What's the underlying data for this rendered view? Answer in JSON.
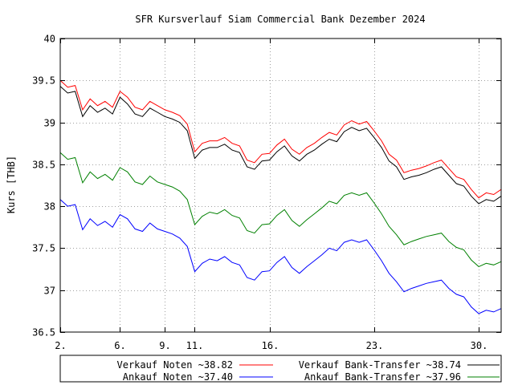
{
  "chart_data": {
    "type": "line",
    "title": "SFR Kursverlauf Siam Commercial Bank Dezember 2024",
    "xlabel": "",
    "ylabel": "Kurs [THB]",
    "xlim": [
      2,
      31.5
    ],
    "ylim": [
      36.5,
      40
    ],
    "x_ticks": [
      {
        "value": 2,
        "label": "2."
      },
      {
        "value": 6,
        "label": "6."
      },
      {
        "value": 9,
        "label": "9."
      },
      {
        "value": 11,
        "label": "11."
      },
      {
        "value": 16,
        "label": "16."
      },
      {
        "value": 23,
        "label": "23."
      },
      {
        "value": 30,
        "label": "30."
      }
    ],
    "y_ticks": [
      {
        "value": 36.5,
        "label": "36.5"
      },
      {
        "value": 37,
        "label": "37"
      },
      {
        "value": 37.5,
        "label": "37.5"
      },
      {
        "value": 38,
        "label": "38"
      },
      {
        "value": 38.5,
        "label": "38.5"
      },
      {
        "value": 39,
        "label": "39"
      },
      {
        "value": 39.5,
        "label": "39.5"
      },
      {
        "value": 40,
        "label": "40"
      }
    ],
    "grid": true,
    "legend_placement": "bottom",
    "series": [
      {
        "name": "Verkauf Noten ~38.82",
        "color": "#ff0000",
        "x": [
          2,
          2.5,
          3,
          3.5,
          4,
          4.5,
          5,
          5.5,
          6,
          6.5,
          7,
          7.5,
          8,
          8.5,
          9,
          9.5,
          10,
          10.5,
          11,
          11.5,
          12,
          12.5,
          13,
          13.5,
          14,
          14.5,
          15,
          15.5,
          16,
          16.5,
          17,
          17.5,
          18,
          18.5,
          19,
          19.5,
          20,
          20.5,
          21,
          21.5,
          22,
          22.5,
          23,
          23.5,
          24,
          24.5,
          25,
          25.5,
          26,
          26.5,
          27,
          27.5,
          28,
          28.5,
          29,
          29.5,
          30,
          30.5,
          31,
          31.5
        ],
        "values": [
          39.5,
          39.42,
          39.44,
          39.15,
          39.28,
          39.2,
          39.25,
          39.18,
          39.37,
          39.3,
          39.18,
          39.15,
          39.25,
          39.2,
          39.15,
          39.12,
          39.08,
          38.98,
          38.65,
          38.75,
          38.78,
          38.78,
          38.82,
          38.75,
          38.72,
          38.55,
          38.52,
          38.62,
          38.63,
          38.73,
          38.8,
          38.68,
          38.62,
          38.7,
          38.75,
          38.82,
          38.88,
          38.85,
          38.97,
          39.02,
          38.98,
          39.01,
          38.9,
          38.78,
          38.62,
          38.55,
          38.4,
          38.43,
          38.45,
          38.48,
          38.52,
          38.55,
          38.45,
          38.35,
          38.32,
          38.2,
          38.1,
          38.16,
          38.14,
          38.2
        ]
      },
      {
        "name": "Verkauf Bank-Transfer ~38.74",
        "color": "#000000",
        "x": [
          2,
          2.5,
          3,
          3.5,
          4,
          4.5,
          5,
          5.5,
          6,
          6.5,
          7,
          7.5,
          8,
          8.5,
          9,
          9.5,
          10,
          10.5,
          11,
          11.5,
          12,
          12.5,
          13,
          13.5,
          14,
          14.5,
          15,
          15.5,
          16,
          16.5,
          17,
          17.5,
          18,
          18.5,
          19,
          19.5,
          20,
          20.5,
          21,
          21.5,
          22,
          22.5,
          23,
          23.5,
          24,
          24.5,
          25,
          25.5,
          26,
          26.5,
          27,
          27.5,
          28,
          28.5,
          29,
          29.5,
          30,
          30.5,
          31,
          31.5
        ],
        "values": [
          39.43,
          39.35,
          39.37,
          39.07,
          39.2,
          39.12,
          39.17,
          39.1,
          39.3,
          39.22,
          39.1,
          39.07,
          39.17,
          39.12,
          39.07,
          39.04,
          39.0,
          38.9,
          38.57,
          38.67,
          38.7,
          38.7,
          38.74,
          38.67,
          38.64,
          38.47,
          38.44,
          38.54,
          38.55,
          38.65,
          38.72,
          38.6,
          38.54,
          38.62,
          38.67,
          38.74,
          38.8,
          38.77,
          38.89,
          38.94,
          38.9,
          38.93,
          38.82,
          38.7,
          38.54,
          38.47,
          38.32,
          38.35,
          38.37,
          38.4,
          38.44,
          38.47,
          38.37,
          38.27,
          38.24,
          38.12,
          38.03,
          38.08,
          38.06,
          38.12
        ]
      },
      {
        "name": "Ankauf Noten ~37.40",
        "color": "#0000ff",
        "x": [
          2,
          2.5,
          3,
          3.5,
          4,
          4.5,
          5,
          5.5,
          6,
          6.5,
          7,
          7.5,
          8,
          8.5,
          9,
          9.5,
          10,
          10.5,
          11,
          11.5,
          12,
          12.5,
          13,
          13.5,
          14,
          14.5,
          15,
          15.5,
          16,
          16.5,
          17,
          17.5,
          18,
          18.5,
          19,
          19.5,
          20,
          20.5,
          21,
          21.5,
          22,
          22.5,
          23,
          23.5,
          24,
          24.5,
          25,
          25.5,
          26,
          26.5,
          27,
          27.5,
          28,
          28.5,
          29,
          29.5,
          30,
          30.5,
          31,
          31.5
        ],
        "values": [
          38.08,
          38.0,
          38.02,
          37.72,
          37.85,
          37.77,
          37.82,
          37.75,
          37.9,
          37.85,
          37.73,
          37.7,
          37.8,
          37.73,
          37.7,
          37.67,
          37.62,
          37.52,
          37.22,
          37.32,
          37.37,
          37.35,
          37.4,
          37.33,
          37.3,
          37.15,
          37.12,
          37.22,
          37.23,
          37.33,
          37.4,
          37.27,
          37.2,
          37.28,
          37.35,
          37.42,
          37.5,
          37.47,
          37.57,
          37.6,
          37.57,
          37.6,
          37.48,
          37.35,
          37.2,
          37.1,
          36.98,
          37.02,
          37.05,
          37.08,
          37.1,
          37.12,
          37.02,
          36.95,
          36.92,
          36.8,
          36.72,
          36.76,
          36.74,
          36.78
        ]
      },
      {
        "name": "Ankauf Bank-Transfer ~37.96",
        "color": "#008000",
        "x": [
          2,
          2.5,
          3,
          3.5,
          4,
          4.5,
          5,
          5.5,
          6,
          6.5,
          7,
          7.5,
          8,
          8.5,
          9,
          9.5,
          10,
          10.5,
          11,
          11.5,
          12,
          12.5,
          13,
          13.5,
          14,
          14.5,
          15,
          15.5,
          16,
          16.5,
          17,
          17.5,
          18,
          18.5,
          19,
          19.5,
          20,
          20.5,
          21,
          21.5,
          22,
          22.5,
          23,
          23.5,
          24,
          24.5,
          25,
          25.5,
          26,
          26.5,
          27,
          27.5,
          28,
          28.5,
          29,
          29.5,
          30,
          30.5,
          31,
          31.5
        ],
        "values": [
          38.64,
          38.56,
          38.58,
          38.28,
          38.41,
          38.33,
          38.38,
          38.31,
          38.46,
          38.41,
          38.29,
          38.26,
          38.36,
          38.29,
          38.26,
          38.23,
          38.18,
          38.08,
          37.78,
          37.88,
          37.93,
          37.91,
          37.96,
          37.89,
          37.86,
          37.71,
          37.68,
          37.78,
          37.79,
          37.89,
          37.96,
          37.83,
          37.76,
          37.84,
          37.91,
          37.98,
          38.06,
          38.03,
          38.13,
          38.16,
          38.13,
          38.16,
          38.04,
          37.91,
          37.76,
          37.66,
          37.54,
          37.58,
          37.61,
          37.64,
          37.66,
          37.68,
          37.58,
          37.51,
          37.48,
          37.36,
          37.28,
          37.32,
          37.3,
          37.34
        ]
      }
    ]
  }
}
